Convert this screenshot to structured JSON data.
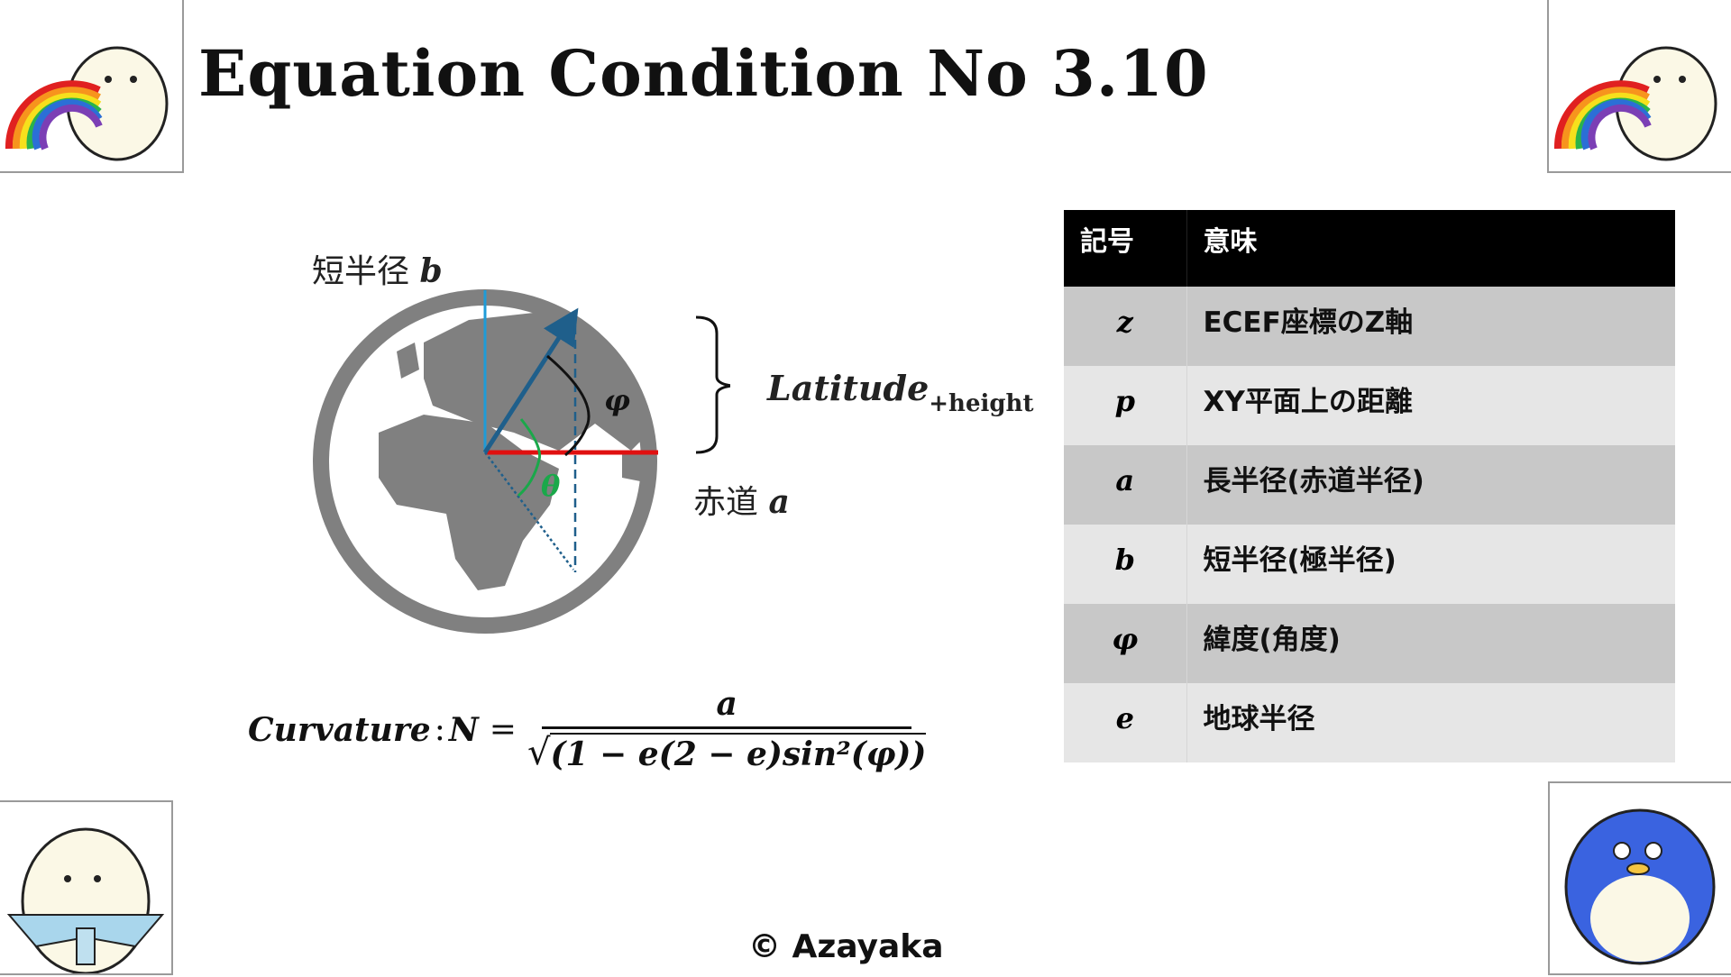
{
  "title": "Equation Condition No 3.10",
  "diagram": {
    "minor_radius_label": "短半径",
    "minor_radius_symbol": "b",
    "equator_label": "赤道",
    "equator_symbol": "a",
    "latitude_label": "Latitude",
    "latitude_subscript": "+height",
    "phi_symbol": "φ",
    "theta_symbol": "θ",
    "colors": {
      "globe": "#808080",
      "polar_axis": "#1f9bd7",
      "equator": "#e01010",
      "normal_vector": "#1f5f8b",
      "theta_arc": "#1aa84a"
    }
  },
  "formula": {
    "lhs": "Curvature",
    "colon": ":",
    "var": "N",
    "equals": "=",
    "numerator": "a",
    "denominator": "(1 − e(2 − e)sin²(φ))"
  },
  "table": {
    "headers": [
      "記号",
      "意味"
    ],
    "rows": [
      {
        "symbol": "z",
        "meaning": "ECEF座標のZ軸"
      },
      {
        "symbol": "p",
        "meaning": "XY平面上の距離"
      },
      {
        "symbol": "a",
        "meaning": "長半径(赤道半径)"
      },
      {
        "symbol": "b",
        "meaning": "短半径(極半径)"
      },
      {
        "symbol": "φ",
        "meaning": "緯度(角度)"
      },
      {
        "symbol": "e",
        "meaning": "地球半径"
      }
    ]
  },
  "copyright": "© Azayaka"
}
